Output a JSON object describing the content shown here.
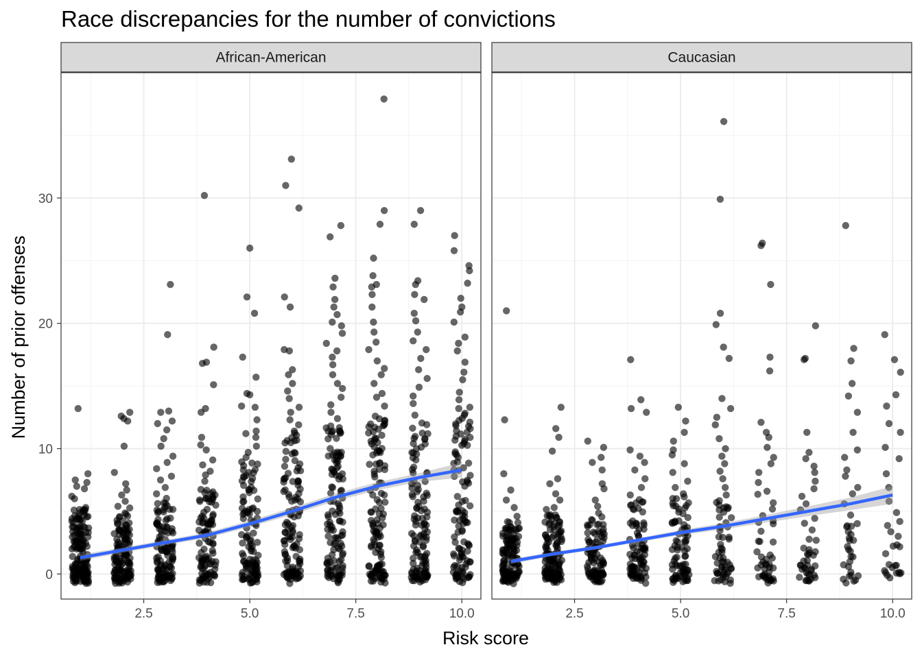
{
  "chart_data": {
    "type": "scatter",
    "title": "Race discrepancies for the number of convictions",
    "xlabel": "Risk score",
    "ylabel": "Number of prior offenses",
    "xlim": [
      0.55,
      10.45
    ],
    "ylim": [
      -2,
      40
    ],
    "x_ticks": [
      2.5,
      5.0,
      7.5,
      10.0
    ],
    "x_tick_labels": [
      "2.5",
      "5.0",
      "7.5",
      "10.0"
    ],
    "y_ticks": [
      0,
      10,
      20,
      30
    ],
    "y_tick_labels": [
      "0",
      "10",
      "20",
      "30"
    ],
    "grid": true,
    "legend": "none",
    "point_color": "#000000",
    "point_opacity": 0.6,
    "smooth_color": "#3366FF",
    "ribbon_color": "#999999",
    "panel_strip_color": "#D9D9D9",
    "panels": [
      {
        "name": "African-American",
        "smooth": {
          "x": [
            1,
            2,
            3,
            4,
            5,
            6,
            7,
            8,
            9,
            10
          ],
          "y": [
            1.3,
            1.9,
            2.5,
            3.1,
            4.0,
            5.0,
            6.1,
            7.0,
            7.7,
            8.3
          ],
          "se": [
            0.25,
            0.2,
            0.2,
            0.22,
            0.25,
            0.28,
            0.3,
            0.32,
            0.35,
            0.6
          ]
        },
        "groups": [
          {
            "score": 1,
            "dense_max": 5,
            "n_dense": 150,
            "outliers": [
              5.1,
              5.3,
              6.0,
              6.2,
              6.8,
              7.0,
              7.3,
              7.5,
              8.0,
              13.2
            ]
          },
          {
            "score": 2,
            "dense_max": 5,
            "n_dense": 130,
            "outliers": [
              5.4,
              5.8,
              6.3,
              6.7,
              7.2,
              8.1,
              10.2,
              12.2,
              12.4,
              12.6,
              12.9
            ]
          },
          {
            "score": 3,
            "dense_max": 6,
            "n_dense": 110,
            "outliers": [
              6.4,
              6.9,
              7.5,
              7.8,
              8.4,
              8.9,
              9.4,
              10.2,
              10.8,
              11.5,
              12.0,
              12.2,
              12.9,
              13.0,
              19.1,
              23.1
            ]
          },
          {
            "score": 4,
            "dense_max": 7,
            "n_dense": 100,
            "outliers": [
              7.4,
              7.9,
              8.2,
              8.7,
              9.1,
              9.9,
              10.3,
              10.9,
              12.9,
              13.2,
              15.1,
              16.8,
              16.9,
              18.1,
              30.2
            ]
          },
          {
            "score": 5,
            "dense_max": 9,
            "n_dense": 110,
            "outliers": [
              9.3,
              9.7,
              10.2,
              10.9,
              11.2,
              11.4,
              12.3,
              13.3,
              13.4,
              14.3,
              14.4,
              15.7,
              17.3,
              20.8,
              22.1,
              26.0
            ]
          },
          {
            "score": 6,
            "dense_max": 11,
            "n_dense": 120,
            "outliers": [
              11.4,
              11.9,
              12.3,
              12.9,
              13.3,
              14.0,
              14.6,
              15.2,
              15.9,
              16.3,
              17.8,
              17.9,
              21.3,
              22.1,
              29.2,
              31.0,
              33.1
            ]
          },
          {
            "score": 7,
            "dense_max": 12,
            "n_dense": 120,
            "outliers": [
              12.4,
              12.9,
              13.5,
              14.1,
              14.8,
              15.2,
              15.9,
              16.7,
              17.3,
              17.8,
              18.4,
              19.2,
              19.8,
              20.1,
              20.7,
              21.3,
              21.9,
              22.9,
              23.6,
              26.9,
              27.8
            ]
          },
          {
            "score": 8,
            "dense_max": 13,
            "n_dense": 120,
            "outliers": [
              13.4,
              14.1,
              14.4,
              15.2,
              15.9,
              16.4,
              17.0,
              17.9,
              18.5,
              19.3,
              20.1,
              21.3,
              22.3,
              22.9,
              23.1,
              23.8,
              25.2,
              27.9,
              29.0,
              37.9
            ]
          },
          {
            "score": 9,
            "dense_max": 13,
            "n_dense": 120,
            "outliers": [
              13.6,
              14.2,
              14.9,
              15.6,
              16.3,
              17.2,
              17.9,
              18.6,
              19.3,
              20.2,
              20.8,
              21.9,
              22.3,
              23.1,
              23.4,
              27.9,
              29.0
            ]
          },
          {
            "score": 10,
            "dense_max": 13,
            "n_dense": 110,
            "outliers": [
              13.3,
              13.9,
              14.5,
              15.5,
              16.1,
              16.9,
              17.8,
              18.4,
              18.9,
              20.1,
              20.9,
              21.3,
              22.0,
              23.2,
              24.2,
              24.6,
              25.8,
              27.0
            ]
          }
        ]
      },
      {
        "name": "Caucasian",
        "smooth": {
          "x": [
            1,
            2,
            3,
            4,
            5,
            6,
            7,
            8,
            9,
            10
          ],
          "y": [
            1.0,
            1.6,
            2.1,
            2.7,
            3.3,
            3.8,
            4.4,
            5.0,
            5.6,
            6.3
          ],
          "se": [
            0.2,
            0.15,
            0.15,
            0.15,
            0.2,
            0.25,
            0.3,
            0.4,
            0.5,
            0.7
          ]
        },
        "groups": [
          {
            "score": 1,
            "dense_max": 4,
            "n_dense": 130,
            "outliers": [
              4.1,
              4.6,
              5.3,
              5.9,
              6.7,
              8.0,
              12.3,
              21.0
            ]
          },
          {
            "score": 2,
            "dense_max": 5,
            "n_dense": 120,
            "outliers": [
              5.3,
              5.9,
              6.4,
              7.2,
              7.6,
              9.8,
              10.9,
              11.6,
              13.3
            ]
          },
          {
            "score": 3,
            "dense_max": 5,
            "n_dense": 90,
            "outliers": [
              5.4,
              5.9,
              6.8,
              7.2,
              8.3,
              8.9,
              9.3,
              10.1,
              10.6
            ]
          },
          {
            "score": 4,
            "dense_max": 6,
            "n_dense": 85,
            "outliers": [
              6.3,
              6.9,
              7.6,
              8.3,
              8.9,
              9.4,
              9.9,
              12.9,
              13.2,
              13.9,
              17.1
            ]
          },
          {
            "score": 5,
            "dense_max": 6,
            "n_dense": 80,
            "outliers": [
              6.4,
              6.9,
              7.4,
              8.1,
              8.8,
              9.5,
              9.9,
              10.6,
              11.3,
              12.2,
              13.3
            ]
          },
          {
            "score": 6,
            "dense_max": 6,
            "n_dense": 55,
            "outliers": [
              6.3,
              6.9,
              7.6,
              8.2,
              8.8,
              9.4,
              10.0,
              10.8,
              11.9,
              12.5,
              13.2,
              14.0,
              17.2,
              18.1,
              19.9,
              20.8,
              29.9,
              36.1
            ]
          },
          {
            "score": 7,
            "dense_max": 6,
            "n_dense": 40,
            "outliers": [
              6.6,
              7.3,
              8.1,
              8.8,
              9.3,
              10.1,
              10.9,
              11.3,
              12.1,
              16.2,
              17.3,
              23.1,
              26.2,
              26.4
            ]
          },
          {
            "score": 8,
            "dense_max": 5,
            "n_dense": 35,
            "outliers": [
              5.6,
              6.2,
              6.8,
              7.4,
              8.1,
              8.6,
              9.2,
              9.7,
              11.3,
              17.1,
              17.2,
              19.8
            ]
          },
          {
            "score": 9,
            "dense_max": 4,
            "n_dense": 25,
            "outliers": [
              4.7,
              5.6,
              6.4,
              6.9,
              7.8,
              8.3,
              9.3,
              9.9,
              11.3,
              12.9,
              14.2,
              15.2,
              17.0,
              18.0,
              27.8
            ]
          },
          {
            "score": 10,
            "dense_max": 4,
            "n_dense": 20,
            "outliers": [
              4.9,
              5.8,
              6.9,
              8.0,
              9.2,
              10.1,
              11.3,
              12.0,
              13.4,
              14.3,
              16.1,
              17.1,
              19.1
            ]
          }
        ]
      }
    ]
  }
}
